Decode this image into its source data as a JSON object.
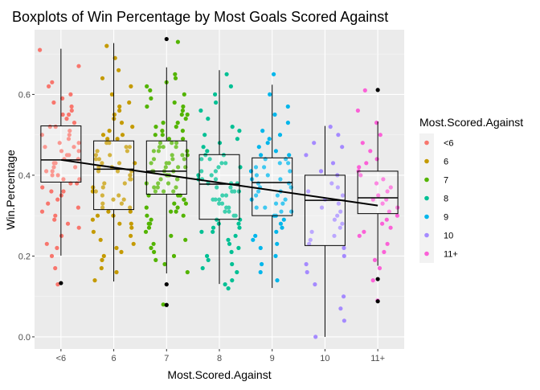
{
  "chart_data": {
    "type": "boxplot",
    "title": "Boxplots of Win Percentage by Most Goals Scored Against",
    "xlabel": "Most.Scored.Against",
    "ylabel": "Win.Percentage",
    "ylim": [
      -0.03,
      0.76
    ],
    "grid": true,
    "y_ticks": [
      "0.0",
      "0.2",
      "0.4",
      "0.6"
    ],
    "y_tick_values": [
      0.0,
      0.2,
      0.4,
      0.6
    ],
    "categories": [
      "<6",
      "6",
      "7",
      "8",
      "9",
      "10",
      "11+"
    ],
    "colors": [
      "#F8766D",
      "#C49A00",
      "#53B400",
      "#00C094",
      "#00B6EB",
      "#A58AFF",
      "#FB61D7"
    ],
    "legend": {
      "title": "Most.Scored.Against",
      "position": "right",
      "labels": [
        "<6",
        "6",
        "7",
        "8",
        "9",
        "10",
        "11+"
      ]
    },
    "boxes": [
      {
        "category": "<6",
        "q1": 0.383,
        "median": 0.438,
        "q3": 0.522,
        "whisker_low": 0.201,
        "whisker_high": 0.713,
        "outliers": [
          0.133
        ]
      },
      {
        "category": "6",
        "q1": 0.315,
        "median": 0.415,
        "q3": 0.485,
        "whisker_low": 0.137,
        "whisker_high": 0.727,
        "outliers": []
      },
      {
        "category": "7",
        "q1": 0.353,
        "median": 0.41,
        "q3": 0.485,
        "whisker_low": 0.157,
        "whisker_high": 0.667,
        "outliers": [
          0.737,
          0.13,
          0.079
        ]
      },
      {
        "category": "8",
        "q1": 0.291,
        "median": 0.378,
        "q3": 0.451,
        "whisker_low": 0.131,
        "whisker_high": 0.66,
        "outliers": []
      },
      {
        "category": "9",
        "q1": 0.3,
        "median": 0.382,
        "q3": 0.443,
        "whisker_low": 0.121,
        "whisker_high": 0.624,
        "outliers": []
      },
      {
        "category": "10",
        "q1": 0.226,
        "median": 0.338,
        "q3": 0.4,
        "whisker_low": 0.0,
        "whisker_high": 0.522,
        "outliers": []
      },
      {
        "category": "11+",
        "q1": 0.305,
        "median": 0.344,
        "q3": 0.41,
        "whisker_low": 0.176,
        "whisker_high": 0.533,
        "outliers": [
          0.611,
          0.143,
          0.088
        ]
      }
    ],
    "trend_line": {
      "x": [
        "<6",
        "11+"
      ],
      "y": [
        0.438,
        0.325
      ]
    },
    "points": {
      "<6": [
        0.71,
        0.67,
        0.63,
        0.62,
        0.6,
        0.59,
        0.58,
        0.57,
        0.56,
        0.55,
        0.55,
        0.54,
        0.53,
        0.52,
        0.52,
        0.51,
        0.5,
        0.5,
        0.49,
        0.48,
        0.48,
        0.47,
        0.47,
        0.46,
        0.46,
        0.45,
        0.45,
        0.44,
        0.44,
        0.44,
        0.43,
        0.43,
        0.42,
        0.42,
        0.41,
        0.41,
        0.4,
        0.4,
        0.39,
        0.39,
        0.38,
        0.38,
        0.37,
        0.36,
        0.36,
        0.35,
        0.34,
        0.33,
        0.32,
        0.31,
        0.3,
        0.29,
        0.28,
        0.27,
        0.25,
        0.23,
        0.22,
        0.2,
        0.17,
        0.13
      ],
      "6": [
        0.72,
        0.69,
        0.66,
        0.64,
        0.62,
        0.6,
        0.58,
        0.57,
        0.56,
        0.55,
        0.54,
        0.53,
        0.52,
        0.51,
        0.5,
        0.5,
        0.49,
        0.49,
        0.48,
        0.48,
        0.47,
        0.47,
        0.46,
        0.46,
        0.45,
        0.45,
        0.44,
        0.44,
        0.43,
        0.43,
        0.43,
        0.42,
        0.42,
        0.41,
        0.41,
        0.41,
        0.4,
        0.4,
        0.39,
        0.39,
        0.38,
        0.38,
        0.37,
        0.37,
        0.36,
        0.36,
        0.35,
        0.35,
        0.34,
        0.34,
        0.33,
        0.33,
        0.32,
        0.32,
        0.31,
        0.31,
        0.3,
        0.3,
        0.29,
        0.28,
        0.28,
        0.27,
        0.26,
        0.25,
        0.24,
        0.23,
        0.22,
        0.21,
        0.2,
        0.19,
        0.17,
        0.16,
        0.14
      ],
      "7": [
        0.73,
        0.65,
        0.64,
        0.63,
        0.62,
        0.61,
        0.6,
        0.59,
        0.58,
        0.57,
        0.57,
        0.56,
        0.55,
        0.55,
        0.54,
        0.53,
        0.53,
        0.52,
        0.52,
        0.51,
        0.51,
        0.5,
        0.5,
        0.49,
        0.49,
        0.48,
        0.48,
        0.48,
        0.47,
        0.47,
        0.47,
        0.46,
        0.46,
        0.46,
        0.45,
        0.45,
        0.45,
        0.44,
        0.44,
        0.44,
        0.43,
        0.43,
        0.43,
        0.42,
        0.42,
        0.42,
        0.41,
        0.41,
        0.41,
        0.41,
        0.4,
        0.4,
        0.4,
        0.39,
        0.39,
        0.39,
        0.38,
        0.38,
        0.38,
        0.37,
        0.37,
        0.37,
        0.36,
        0.36,
        0.36,
        0.35,
        0.35,
        0.35,
        0.34,
        0.34,
        0.33,
        0.33,
        0.32,
        0.32,
        0.31,
        0.31,
        0.3,
        0.3,
        0.29,
        0.28,
        0.28,
        0.27,
        0.26,
        0.25,
        0.24,
        0.23,
        0.22,
        0.21,
        0.2,
        0.19,
        0.18,
        0.16,
        0.08
      ],
      "8": [
        0.65,
        0.62,
        0.6,
        0.58,
        0.56,
        0.54,
        0.52,
        0.51,
        0.5,
        0.49,
        0.48,
        0.47,
        0.46,
        0.45,
        0.45,
        0.44,
        0.44,
        0.43,
        0.43,
        0.42,
        0.42,
        0.41,
        0.41,
        0.4,
        0.4,
        0.39,
        0.39,
        0.39,
        0.38,
        0.38,
        0.38,
        0.37,
        0.37,
        0.36,
        0.36,
        0.36,
        0.35,
        0.35,
        0.34,
        0.34,
        0.34,
        0.33,
        0.33,
        0.32,
        0.32,
        0.31,
        0.31,
        0.3,
        0.3,
        0.29,
        0.29,
        0.28,
        0.28,
        0.27,
        0.27,
        0.26,
        0.26,
        0.25,
        0.24,
        0.23,
        0.22,
        0.21,
        0.2,
        0.19,
        0.18,
        0.17,
        0.16,
        0.14,
        0.13,
        0.12
      ],
      "9": [
        0.65,
        0.6,
        0.57,
        0.55,
        0.53,
        0.51,
        0.5,
        0.49,
        0.48,
        0.47,
        0.46,
        0.45,
        0.45,
        0.44,
        0.44,
        0.43,
        0.43,
        0.42,
        0.42,
        0.41,
        0.41,
        0.4,
        0.4,
        0.39,
        0.39,
        0.38,
        0.38,
        0.37,
        0.37,
        0.36,
        0.36,
        0.35,
        0.35,
        0.34,
        0.34,
        0.33,
        0.33,
        0.32,
        0.32,
        0.31,
        0.31,
        0.3,
        0.3,
        0.29,
        0.28,
        0.27,
        0.26,
        0.25,
        0.24,
        0.23,
        0.22,
        0.2,
        0.18,
        0.16,
        0.14
      ],
      "10": [
        0.52,
        0.5,
        0.48,
        0.47,
        0.45,
        0.43,
        0.41,
        0.4,
        0.38,
        0.37,
        0.36,
        0.35,
        0.34,
        0.33,
        0.32,
        0.31,
        0.3,
        0.29,
        0.28,
        0.27,
        0.26,
        0.25,
        0.24,
        0.23,
        0.22,
        0.2,
        0.18,
        0.16,
        0.13,
        0.1,
        0.07,
        0.04,
        0.0
      ],
      "11+": [
        0.61,
        0.56,
        0.53,
        0.5,
        0.48,
        0.46,
        0.44,
        0.43,
        0.42,
        0.41,
        0.4,
        0.39,
        0.38,
        0.37,
        0.36,
        0.35,
        0.34,
        0.34,
        0.33,
        0.32,
        0.31,
        0.3,
        0.29,
        0.28,
        0.27,
        0.26,
        0.25,
        0.23,
        0.21,
        0.19,
        0.17,
        0.14,
        0.09
      ]
    }
  }
}
